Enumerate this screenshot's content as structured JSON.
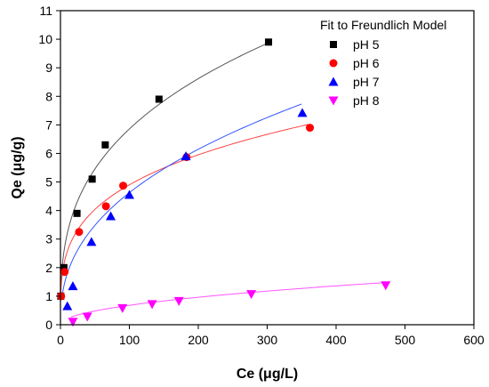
{
  "chart_data": {
    "type": "scatter",
    "xlabel": "Ce (μg/L)",
    "ylabel": "Qe (μg/g)",
    "xlim": [
      0,
      600
    ],
    "ylim": [
      0,
      11
    ],
    "xticks": [
      0,
      100,
      200,
      300,
      400,
      500,
      600
    ],
    "yticks": [
      0,
      1,
      2,
      3,
      4,
      5,
      6,
      7,
      8,
      9,
      10,
      11
    ],
    "grid": false,
    "legend": {
      "title": "Fit to Freundlich Model",
      "position": "top-right"
    },
    "series": [
      {
        "name": "pH 5",
        "marker": "square",
        "color": "#000000",
        "fit_color": "#555555",
        "fit": {
          "K": 1.5,
          "n": 0.33,
          "x_range": [
            0.5,
            300
          ]
        },
        "points": [
          [
            0.5,
            1.0
          ],
          [
            5,
            2.0
          ],
          [
            24,
            3.9
          ],
          [
            46,
            5.1
          ],
          [
            65,
            6.3
          ],
          [
            143,
            7.9
          ],
          [
            302,
            9.9
          ]
        ]
      },
      {
        "name": "pH 6",
        "marker": "circle",
        "color": "#ff0000",
        "fit_color": "#ff4444",
        "fit": {
          "K": 1.35,
          "n": 0.28,
          "x_range": [
            0.5,
            360
          ]
        },
        "points": [
          [
            1,
            1.0
          ],
          [
            6,
            1.85
          ],
          [
            27,
            3.25
          ],
          [
            66,
            4.15
          ],
          [
            91,
            4.87
          ],
          [
            183,
            5.87
          ],
          [
            362,
            6.9
          ]
        ]
      },
      {
        "name": "pH 7",
        "marker": "triangle-up",
        "color": "#0000ff",
        "fit_color": "#3355ff",
        "fit": {
          "K": 0.7,
          "n": 0.41,
          "x_range": [
            2,
            350
          ]
        },
        "points": [
          [
            10,
            0.65
          ],
          [
            18,
            1.35
          ],
          [
            45,
            2.9
          ],
          [
            73,
            3.8
          ],
          [
            100,
            4.55
          ],
          [
            182,
            5.9
          ],
          [
            351,
            7.42
          ]
        ]
      },
      {
        "name": "pH 8",
        "marker": "triangle-down",
        "color": "#ff00ff",
        "fit_color": "#ff55ff",
        "fit": {
          "K": 0.068,
          "n": 0.5,
          "x_range": [
            15,
            472
          ]
        },
        "points": [
          [
            18,
            0.1
          ],
          [
            39,
            0.28
          ],
          [
            90,
            0.58
          ],
          [
            133,
            0.72
          ],
          [
            172,
            0.83
          ],
          [
            277,
            1.07
          ],
          [
            472,
            1.38
          ]
        ]
      }
    ]
  }
}
